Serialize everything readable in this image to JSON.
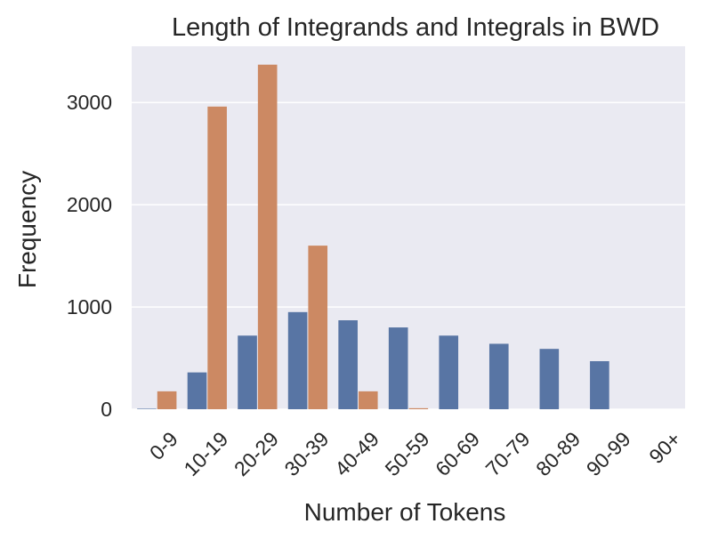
{
  "chart_data": {
    "type": "bar",
    "title": "Length of Integrands and Integrals in BWD",
    "xlabel": "Number of Tokens",
    "ylabel": "Frequency",
    "ylim": [
      0,
      3550
    ],
    "yticks": [
      0,
      1000,
      2000,
      3000
    ],
    "grid": true,
    "legend": "none",
    "categories": [
      "0-9",
      "10-19",
      "20-29",
      "30-39",
      "40-49",
      "50-59",
      "60-69",
      "70-79",
      "80-89",
      "90-99",
      "90+"
    ],
    "series": [
      {
        "color": "#5875A4",
        "values": [
          5,
          360,
          720,
          950,
          870,
          800,
          720,
          640,
          590,
          470,
          0
        ]
      },
      {
        "color": "#CC8963",
        "values": [
          175,
          2960,
          3370,
          1600,
          175,
          10,
          0,
          0,
          0,
          0,
          0
        ]
      }
    ]
  }
}
